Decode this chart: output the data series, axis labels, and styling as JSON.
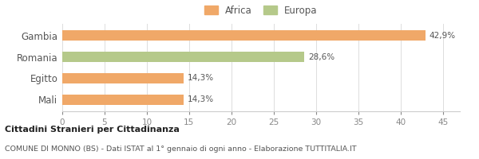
{
  "categories": [
    "Gambia",
    "Romania",
    "Egitto",
    "Mali"
  ],
  "values": [
    42.9,
    28.6,
    14.3,
    14.3
  ],
  "labels": [
    "42,9%",
    "28,6%",
    "14,3%",
    "14,3%"
  ],
  "bar_colors": [
    "#f0a868",
    "#b5c98a",
    "#f0a868",
    "#f0a868"
  ],
  "legend_labels": [
    "Africa",
    "Europa"
  ],
  "legend_colors": [
    "#f0a868",
    "#b5c98a"
  ],
  "xlim": [
    0,
    47
  ],
  "xticks": [
    0,
    5,
    10,
    15,
    20,
    25,
    30,
    35,
    40,
    45
  ],
  "title_bold": "Cittadini Stranieri per Cittadinanza",
  "subtitle": "COMUNE DI MONNO (BS) - Dati ISTAT al 1° gennaio di ogni anno - Elaborazione TUTTITALIA.IT",
  "background_color": "#ffffff",
  "bar_height": 0.5
}
